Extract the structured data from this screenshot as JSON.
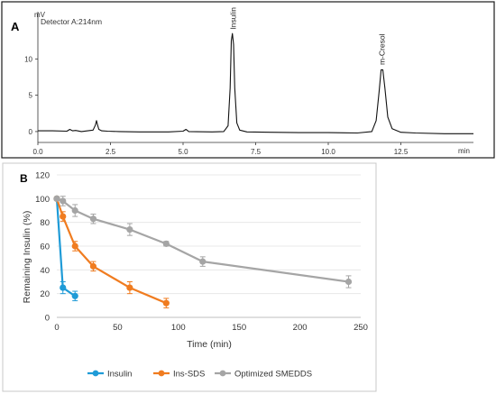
{
  "chart_data": [
    {
      "type": "line",
      "panel_label": "A",
      "detector_label": "Detector A:214nm",
      "ylabel": "mV",
      "xlabel": "min",
      "xlim": [
        0,
        15.0
      ],
      "ylim": [
        -1.5,
        16.5
      ],
      "x_ticks": [
        "0.0",
        "2.5",
        "5.0",
        "7.5",
        "10.0",
        "12.5"
      ],
      "y_ticks": [
        "0",
        "5",
        "10"
      ],
      "series": [
        {
          "x": [
            0.0,
            0.5,
            1.0,
            1.1,
            1.2,
            1.3,
            1.5,
            1.9,
            1.98,
            2.02,
            2.05,
            2.1,
            2.2,
            2.4,
            2.8,
            3.5,
            4.5,
            5.0,
            5.1,
            5.2,
            6.0,
            6.4,
            6.55,
            6.62,
            6.66,
            6.7,
            6.74,
            6.78,
            6.85,
            6.95,
            7.2,
            8.0,
            9.0,
            10.0,
            11.0,
            11.5,
            11.65,
            11.75,
            11.82,
            11.88,
            11.95,
            12.05,
            12.2,
            12.5,
            13.0,
            14.0,
            15.0
          ],
          "y": [
            0.1,
            0.1,
            0.05,
            0.3,
            0.1,
            0.15,
            0.0,
            0.2,
            0.9,
            1.5,
            1.0,
            0.3,
            0.1,
            0.05,
            0.0,
            -0.05,
            -0.05,
            0.05,
            0.3,
            0.0,
            -0.05,
            0.0,
            0.8,
            6.0,
            12.5,
            13.5,
            12.0,
            6.0,
            1.2,
            0.2,
            -0.05,
            -0.1,
            -0.15,
            -0.15,
            -0.2,
            0.0,
            1.5,
            5.5,
            8.5,
            8.5,
            6.0,
            2.0,
            0.4,
            -0.1,
            -0.2,
            -0.3,
            -0.3
          ]
        }
      ],
      "annotations": [
        {
          "text": "Insulin",
          "x": 6.72,
          "y": 13.7
        },
        {
          "text": "m-Cresol",
          "x": 11.85,
          "y": 8.8
        }
      ]
    },
    {
      "type": "line",
      "panel_label": "B",
      "xlabel": "Time (min)",
      "ylabel": "Remaining Insulin (%)",
      "xlim": [
        0,
        250
      ],
      "ylim": [
        0,
        120
      ],
      "x_ticks": [
        "0",
        "50",
        "100",
        "150",
        "200",
        "250"
      ],
      "y_ticks": [
        "0",
        "20",
        "40",
        "60",
        "80",
        "100",
        "120"
      ],
      "grid": "horizontal",
      "legend_position": "bottom",
      "series": [
        {
          "name": "Insulin",
          "color": "#1f9bd7",
          "x": [
            0,
            5,
            15
          ],
          "y": [
            100,
            25,
            18
          ],
          "err": [
            0,
            5,
            4
          ]
        },
        {
          "name": "Ins-SDS",
          "color": "#f07c20",
          "x": [
            0,
            5,
            15,
            30,
            60,
            90
          ],
          "y": [
            100,
            85,
            60,
            43,
            25,
            12
          ],
          "err": [
            0,
            4,
            4,
            4,
            5,
            4
          ]
        },
        {
          "name": "Optimized SMEDDS",
          "color": "#a5a5a5",
          "x": [
            0,
            5,
            15,
            30,
            60,
            90,
            120,
            240
          ],
          "y": [
            100,
            98,
            90,
            83,
            74,
            62,
            47,
            30
          ],
          "err": [
            0,
            4,
            5,
            4,
            5,
            2,
            4,
            5
          ]
        }
      ]
    }
  ]
}
